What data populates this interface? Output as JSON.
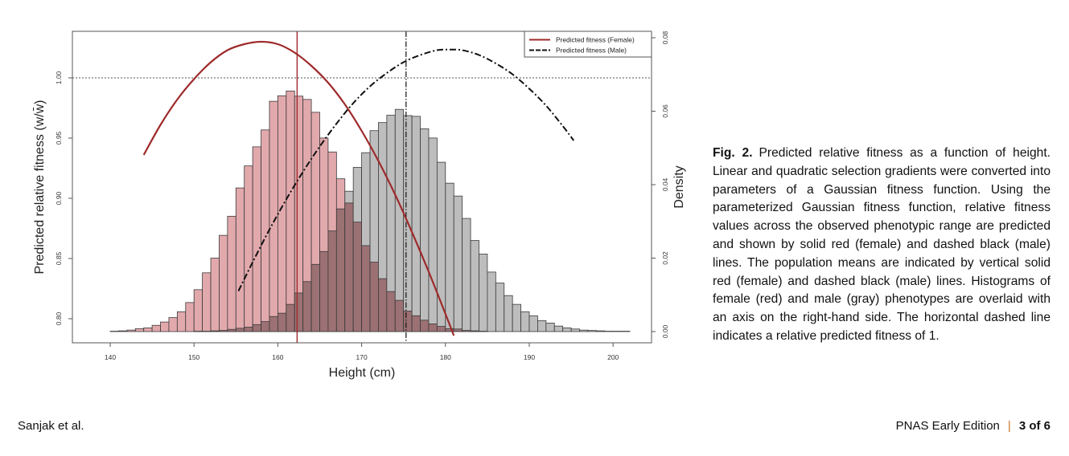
{
  "figure": {
    "caption_label": "Fig. 2.",
    "caption_text": "Predicted relative fitness as a function of height. Linear and quadratic selection gradients were converted into parameters of a Gaussian fitness function. Using the parameterized Gaussian fitness function, relative fitness values across the observed phenotypic range are predicted and shown by solid red (female) and dashed black (male) lines. The population means are indicated by vertical solid red (female) and dashed black (male) lines. Histograms of female (red) and male (gray) phenotypes are overlaid with an axis on the right-hand side. The horizontal dashed line indicates a relative predicted fitness of 1."
  },
  "footer": {
    "authors": "Sanjak et al.",
    "journal": "PNAS Early Edition",
    "separator": "|",
    "page": "3 of 6"
  },
  "chart_data": {
    "type": "bar+line",
    "title": "",
    "xlabel": "Height (cm)",
    "ylabel_left": "Predicted relative fitness (w/w̄)",
    "ylabel_right": "Density",
    "xlim": [
      138,
      202
    ],
    "ylim_left": [
      0.79,
      1.05
    ],
    "ylim_right": [
      0.0,
      0.08
    ],
    "x_ticks": [
      "140",
      "150",
      "160",
      "170",
      "180",
      "190",
      "200"
    ],
    "y_left_ticks": [
      "0.80",
      "0.85",
      "0.90",
      "0.95",
      "1.00"
    ],
    "y_right_ticks": [
      "0.00",
      "0.02",
      "0.04",
      "0.06",
      "0.08"
    ],
    "grid": false,
    "legend": {
      "placement": "top-right",
      "entries": [
        "Predicted fitness (Female)",
        "Predicted fitness (Male)"
      ]
    },
    "colors": {
      "female_line": "#9e2a2b",
      "male_line": "#111111",
      "female_hist": "#e2a9ad",
      "male_hist": "#bdbdbd",
      "overlap_hist": "#9c7173"
    },
    "histogram": {
      "bin_width": 1,
      "bin_starts": [
        138,
        139,
        140,
        141,
        142,
        143,
        144,
        145,
        146,
        147,
        148,
        149,
        150,
        151,
        152,
        153,
        154,
        155,
        156,
        157,
        158,
        159,
        160,
        161,
        162,
        163,
        164,
        165,
        166,
        167,
        168,
        169,
        170,
        171,
        172,
        173,
        174,
        175,
        176,
        177,
        178,
        179,
        180,
        181,
        182,
        183,
        184,
        185,
        186,
        187,
        188,
        189,
        190,
        191,
        192,
        193,
        194,
        195,
        196,
        197,
        198,
        199,
        200,
        201
      ],
      "female_density": [
        0,
        0,
        0.0001,
        0.0002,
        0.0004,
        0.0008,
        0.001,
        0.0017,
        0.0026,
        0.0038,
        0.0054,
        0.0079,
        0.0114,
        0.016,
        0.02,
        0.0262,
        0.0314,
        0.0391,
        0.0451,
        0.0503,
        0.0549,
        0.0627,
        0.0642,
        0.0655,
        0.0641,
        0.0632,
        0.0597,
        0.0527,
        0.0489,
        0.0416,
        0.035,
        0.0298,
        0.0234,
        0.0189,
        0.0144,
        0.0109,
        0.0085,
        0.0056,
        0.0043,
        0.0031,
        0.0021,
        0.0014,
        0.0008,
        0.0007,
        0.0003,
        0.0002,
        0.0001,
        0,
        0,
        0,
        0,
        0,
        0,
        0,
        0,
        0,
        0,
        0,
        0,
        0,
        0,
        0,
        0,
        0
      ],
      "male_density": [
        0,
        0,
        0,
        0,
        0,
        0,
        0,
        0,
        0,
        0,
        0,
        0,
        0.0001,
        0.0001,
        0.0002,
        0.0003,
        0.0006,
        0.0009,
        0.0012,
        0.0019,
        0.0027,
        0.0041,
        0.005,
        0.0074,
        0.0105,
        0.0136,
        0.0183,
        0.0218,
        0.0274,
        0.0334,
        0.0382,
        0.0447,
        0.0487,
        0.0547,
        0.0569,
        0.0589,
        0.0605,
        0.0588,
        0.0586,
        0.0552,
        0.0527,
        0.0461,
        0.0404,
        0.0369,
        0.0308,
        0.0248,
        0.0211,
        0.0162,
        0.0132,
        0.0098,
        0.0074,
        0.0054,
        0.0043,
        0.003,
        0.0023,
        0.0015,
        0.001,
        0.0007,
        0.0004,
        0.0003,
        0.0002,
        0.0001,
        0.0001,
        0.0001
      ]
    },
    "series": [
      {
        "name": "Predicted fitness (Female)",
        "x": [
          144,
          146,
          148,
          150,
          152,
          154,
          156,
          158,
          160,
          162,
          164,
          166,
          168,
          170,
          172,
          174,
          176,
          178,
          180,
          181
        ],
        "y": [
          0.936,
          0.961,
          0.982,
          0.999,
          1.013,
          1.023,
          1.028,
          1.03,
          1.028,
          1.021,
          1.01,
          0.996,
          0.978,
          0.956,
          0.931,
          0.903,
          0.872,
          0.839,
          0.804,
          0.786
        ]
      },
      {
        "name": "Predicted fitness (Male)",
        "x": [
          155.3,
          157,
          159,
          161,
          163,
          165,
          167,
          169,
          171,
          173,
          175,
          177,
          179,
          180.4,
          182,
          184,
          186,
          188,
          190,
          192,
          194,
          195.3
        ],
        "y": [
          0.823,
          0.847,
          0.874,
          0.899,
          0.922,
          0.943,
          0.962,
          0.979,
          0.993,
          1.004,
          1.013,
          1.019,
          1.023,
          1.0235,
          1.023,
          1.019,
          1.012,
          1.003,
          0.991,
          0.977,
          0.96,
          0.948
        ]
      }
    ],
    "mean_lines": {
      "female": 162.3,
      "male": 175.3
    },
    "reference_line": {
      "y": 1.0
    }
  }
}
